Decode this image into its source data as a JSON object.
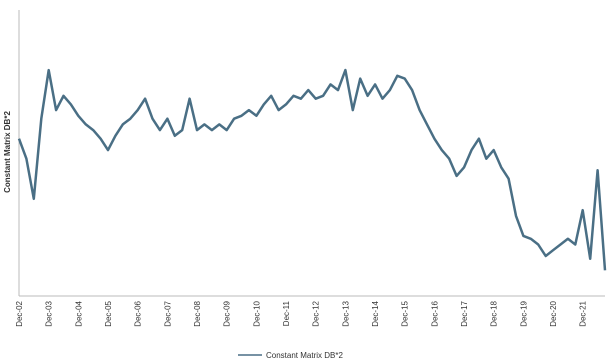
{
  "chart_data": {
    "type": "line",
    "y_label": "Constant Matrix DB*2",
    "categories": [
      "Dec-02",
      null,
      null,
      null,
      "Dec-03",
      null,
      null,
      null,
      "Dec-04",
      null,
      null,
      null,
      "Dec-05",
      null,
      null,
      null,
      "Dec-06",
      null,
      null,
      null,
      "Dec-07",
      null,
      null,
      null,
      "Dec-08",
      null,
      null,
      null,
      "Dec-09",
      null,
      null,
      null,
      "Dec-10",
      null,
      null,
      null,
      "Dec-11",
      null,
      null,
      null,
      "Dec-12",
      null,
      null,
      null,
      "Dec-13",
      null,
      null,
      null,
      "Dec-14",
      null,
      null,
      null,
      "Dec-15",
      null,
      null,
      null,
      "Dec-16",
      null,
      null,
      null,
      "Dec-17",
      null,
      null,
      null,
      "Dec-18",
      null,
      null,
      null,
      "Dec-19",
      null,
      null,
      null,
      "Dec-20",
      null,
      null,
      null,
      "Dec-21",
      null,
      null,
      null
    ],
    "series": [
      {
        "name": "Constant Matrix DB*2",
        "color": "#4a6f85",
        "values": [
          55,
          48,
          34,
          62,
          79,
          65,
          70,
          67,
          63,
          60,
          58,
          55,
          51,
          56,
          60,
          62,
          65,
          69,
          62,
          58,
          62,
          56,
          58,
          69,
          58,
          60,
          58,
          60,
          58,
          62,
          63,
          65,
          63,
          67,
          70,
          65,
          67,
          70,
          69,
          72,
          69,
          70,
          74,
          72,
          79,
          65,
          76,
          70,
          74,
          69,
          72,
          77,
          76,
          72,
          65,
          60,
          55,
          51,
          48,
          42,
          45,
          51,
          55,
          48,
          51,
          45,
          41,
          28,
          21,
          20,
          18,
          14,
          16,
          18,
          20,
          18,
          30,
          13,
          44,
          9
        ]
      }
    ],
    "ylim": [
      0,
      100
    ]
  }
}
